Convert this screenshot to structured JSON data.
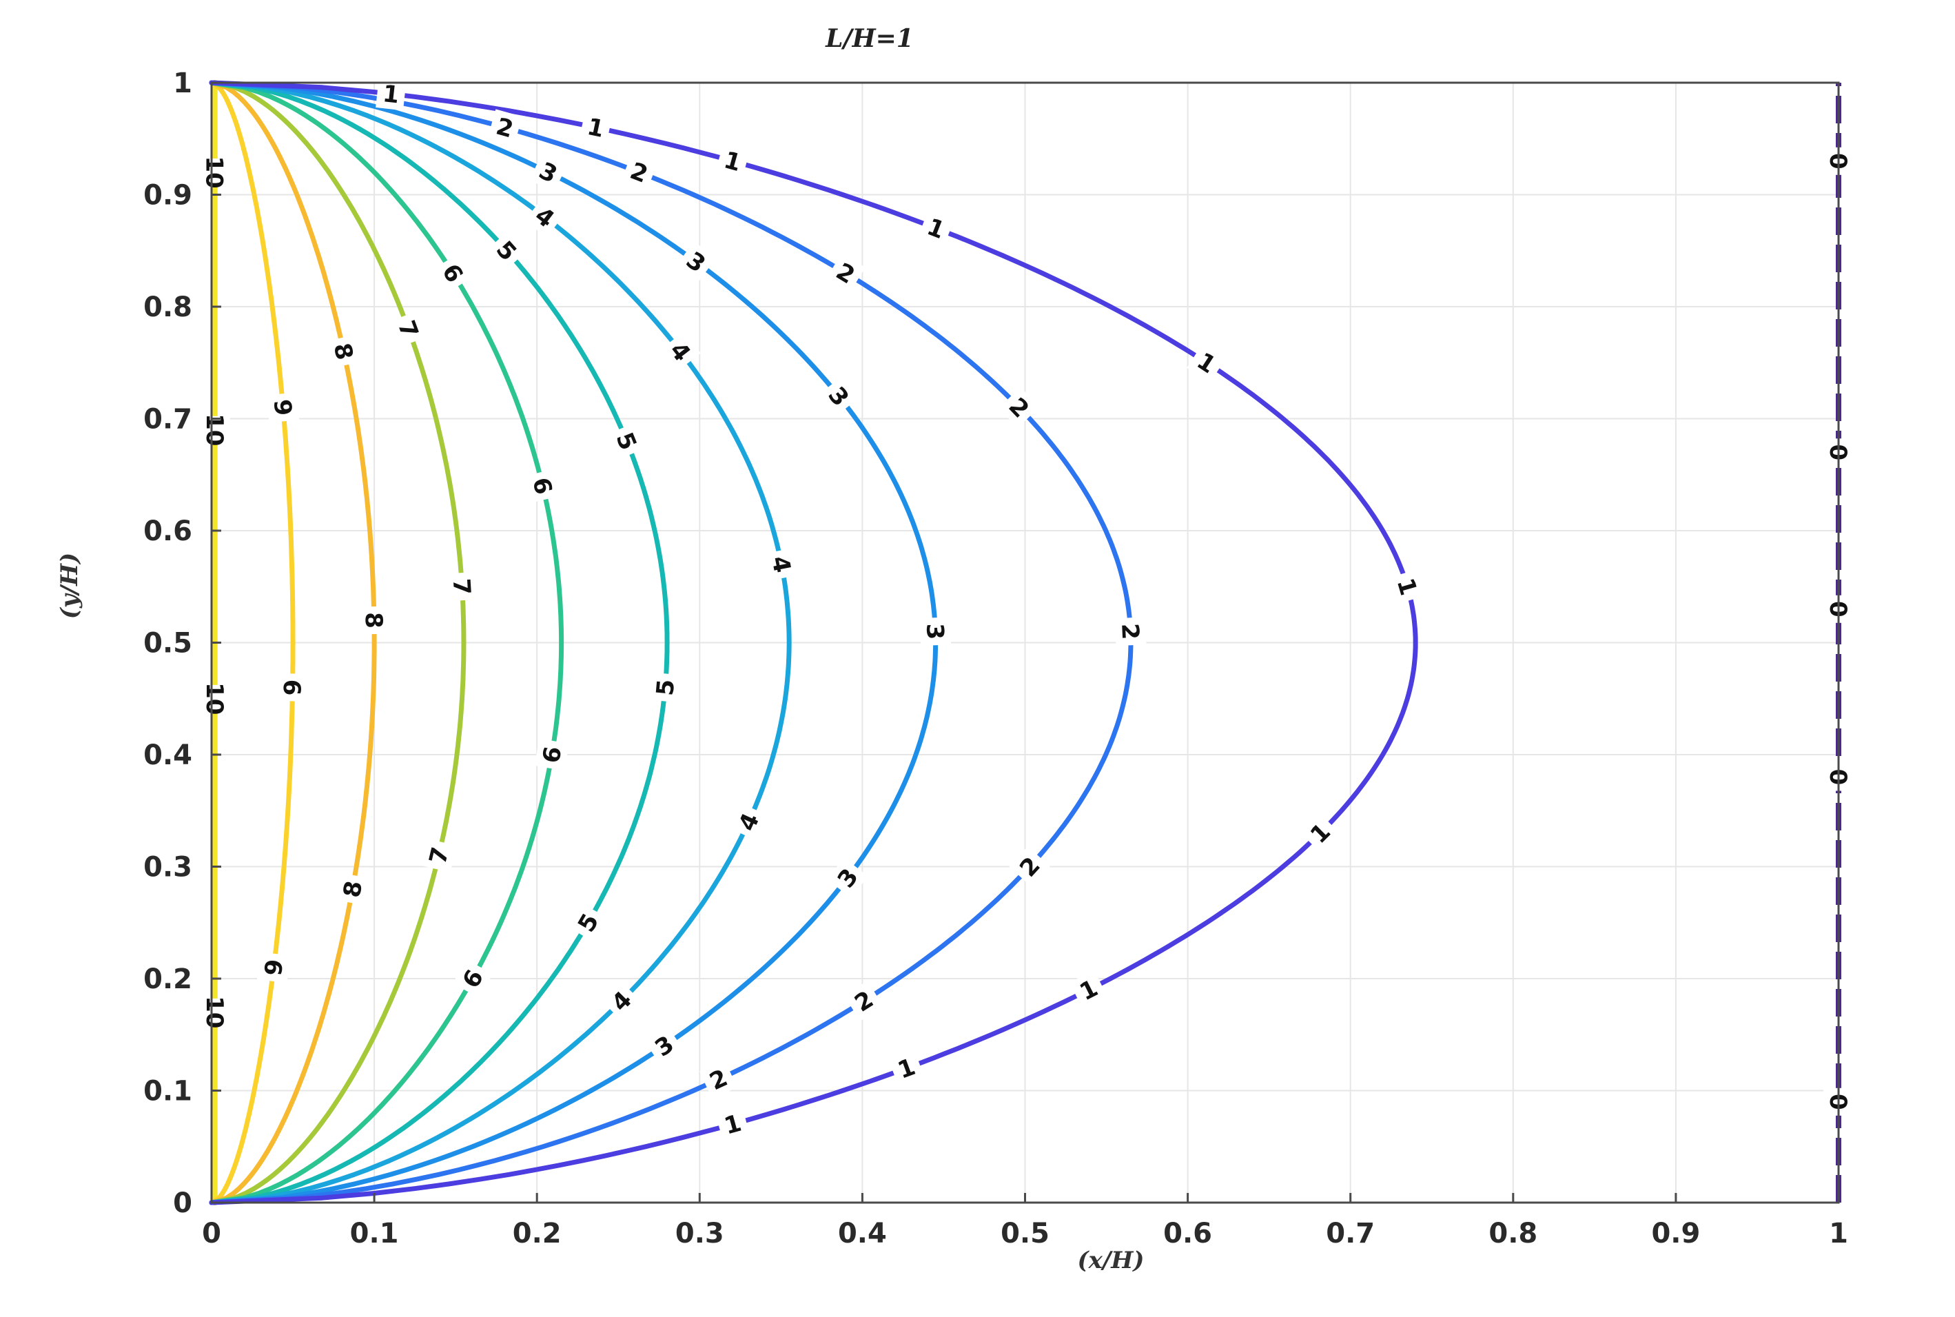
{
  "chart_data": {
    "type": "line",
    "subtype": "contour",
    "title": "L/H=1",
    "xlabel": "(x/H)",
    "ylabel": "(y/H)",
    "xlim": [
      0,
      1
    ],
    "ylim": [
      0,
      1
    ],
    "x_ticks": [
      "0",
      "0.1",
      "0.2",
      "0.3",
      "0.4",
      "0.5",
      "0.6",
      "0.7",
      "0.8",
      "0.9",
      "1"
    ],
    "y_ticks": [
      "0",
      "0.1",
      "0.2",
      "0.3",
      "0.4",
      "0.5",
      "0.6",
      "0.7",
      "0.8",
      "0.9",
      "1"
    ],
    "grid": true,
    "series": [
      {
        "level": "10",
        "max_x": 0.002,
        "color": "#f5e52a",
        "label_ys": [
          0.17,
          0.45,
          0.69,
          0.92
        ]
      },
      {
        "level": "9",
        "max_x": 0.05,
        "color": "#fbd12b",
        "label_ys": [
          0.21,
          0.46,
          0.71
        ]
      },
      {
        "level": "8",
        "max_x": 0.1,
        "color": "#f6b92f",
        "label_ys": [
          0.28,
          0.52,
          0.76
        ]
      },
      {
        "level": "7",
        "max_x": 0.155,
        "color": "#a6c93a",
        "label_ys": [
          0.31,
          0.55,
          0.78
        ]
      },
      {
        "level": "6",
        "max_x": 0.215,
        "color": "#2cc58f",
        "label_ys": [
          0.2,
          0.4,
          0.64,
          0.83
        ]
      },
      {
        "level": "5",
        "max_x": 0.28,
        "color": "#15b8b2",
        "label_ys": [
          0.25,
          0.46,
          0.68,
          0.85
        ]
      },
      {
        "level": "4",
        "max_x": 0.355,
        "color": "#1aa6dc",
        "label_ys": [
          0.18,
          0.34,
          0.57,
          0.76,
          0.88
        ]
      },
      {
        "level": "3",
        "max_x": 0.445,
        "color": "#1d8fe8",
        "label_ys": [
          0.14,
          0.29,
          0.51,
          0.72,
          0.84,
          0.92
        ]
      },
      {
        "level": "2",
        "max_x": 0.565,
        "color": "#2c74f0",
        "label_ys": [
          0.11,
          0.18,
          0.3,
          0.51,
          0.71,
          0.83,
          0.92,
          0.96
        ]
      },
      {
        "level": "1",
        "max_x": 0.74,
        "color": "#4b3de0",
        "label_ys": [
          0.07,
          0.12,
          0.19,
          0.33,
          0.55,
          0.75,
          0.87,
          0.93,
          0.96,
          0.99
        ]
      },
      {
        "level": "0",
        "max_x": 1.0,
        "color": "#4a2890",
        "style": "dashed",
        "label_ys": [
          0.09,
          0.38,
          0.53,
          0.67,
          0.93
        ]
      }
    ]
  }
}
